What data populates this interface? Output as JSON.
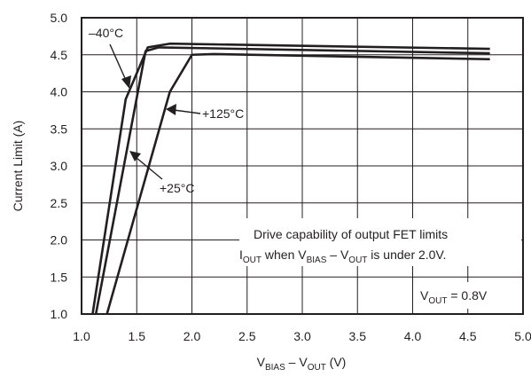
{
  "chart_data": {
    "type": "line",
    "xlabel": {
      "main": "V",
      "sub1": "BIAS",
      "mid": " – V",
      "sub2": "OUT",
      "tail": " (V)"
    },
    "ylabel": "Current Limit (A)",
    "xlim": [
      1.0,
      5.0
    ],
    "ylim": [
      1.0,
      5.0
    ],
    "xticks": [
      "1.0",
      "1.5",
      "2.0",
      "2.5",
      "3.0",
      "3.5",
      "4.0",
      "4.5",
      "5.0"
    ],
    "yticks": [
      "1.0",
      "1.5",
      "2.0",
      "2.5",
      "3.0",
      "3.5",
      "4.0",
      "4.5",
      "5.0"
    ],
    "grid": true,
    "series": [
      {
        "name": "–40°C",
        "points": [
          [
            1.1,
            1.0
          ],
          [
            1.4,
            3.9
          ],
          [
            1.6,
            4.6
          ],
          [
            1.8,
            4.65
          ],
          [
            4.7,
            4.58
          ]
        ]
      },
      {
        "name": "+25°C",
        "points": [
          [
            1.13,
            1.0
          ],
          [
            1.58,
            4.55
          ],
          [
            1.7,
            4.6
          ],
          [
            4.7,
            4.52
          ]
        ]
      },
      {
        "name": "+125°C",
        "points": [
          [
            1.23,
            1.0
          ],
          [
            1.8,
            4.0
          ],
          [
            2.0,
            4.5
          ],
          [
            2.2,
            4.51
          ],
          [
            4.7,
            4.44
          ]
        ]
      }
    ],
    "annotations": {
      "minus40": "–40°C",
      "plus125": "+125°C",
      "plus25": "+25°C",
      "note_line1": "Drive capability of output FET limits",
      "note_line2": {
        "i": "I",
        "isub": "OUT",
        "mid": " when V",
        "vsub": "BIAS",
        "dash": " – V",
        "vsub2": "OUT",
        "tail": " is under 2.0V."
      },
      "vout": {
        "v": "V",
        "sub": "OUT",
        "tail": " = 0.8V"
      }
    }
  }
}
